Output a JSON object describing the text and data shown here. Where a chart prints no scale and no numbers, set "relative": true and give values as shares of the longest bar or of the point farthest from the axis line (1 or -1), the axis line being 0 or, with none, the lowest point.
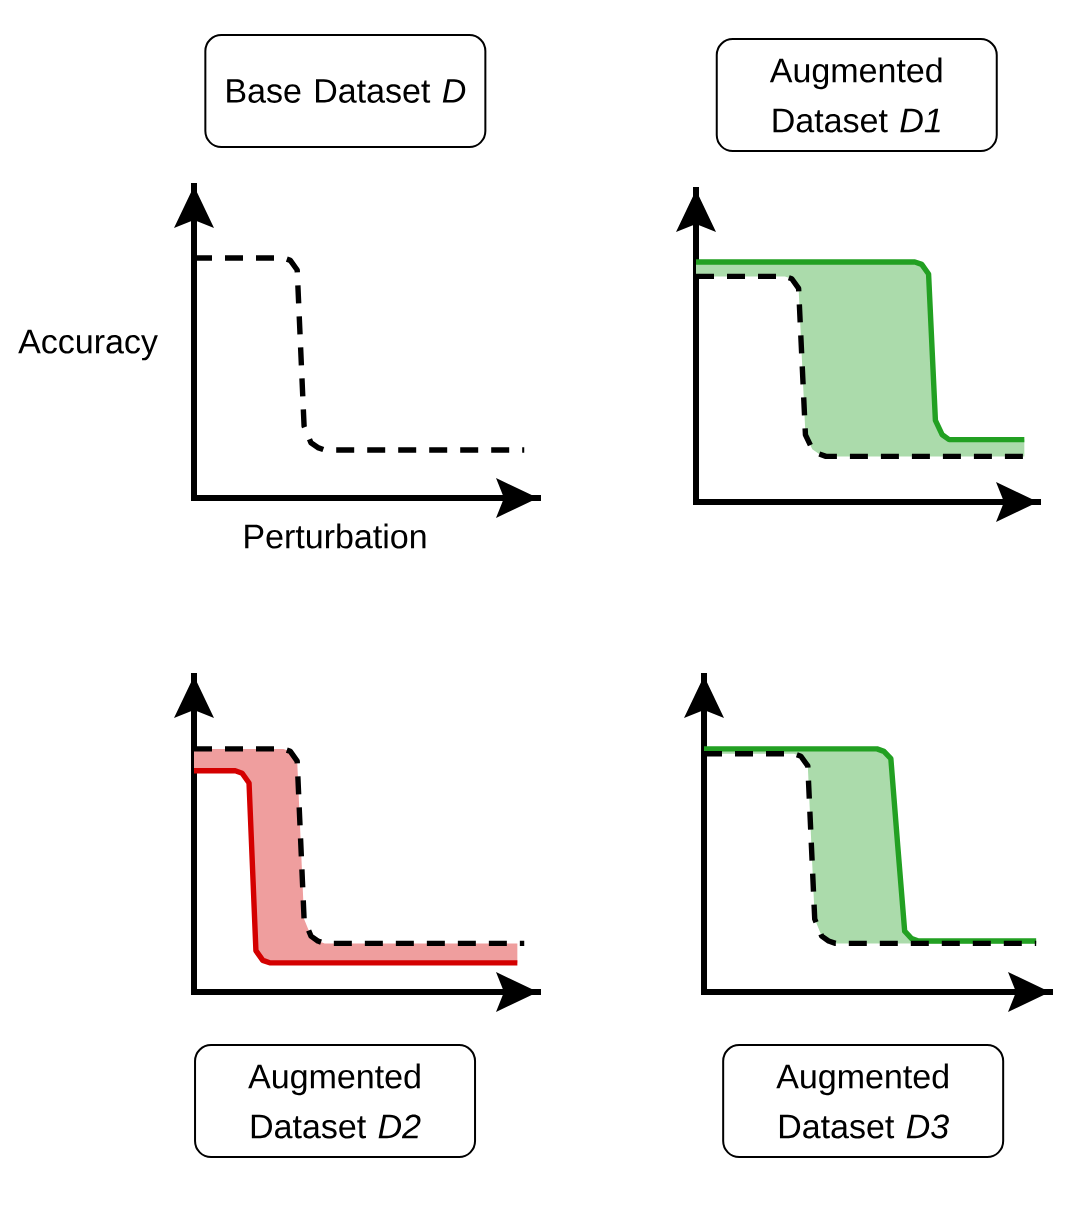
{
  "chart_data": [
    {
      "type": "line",
      "relative": true,
      "title": "Base Dataset *D*",
      "xlabel": "Perturbation",
      "ylabel": "Accuracy",
      "categories": [
        null,
        null,
        null,
        null,
        null,
        null,
        null,
        null,
        null,
        null,
        null,
        null,
        null,
        null,
        null,
        null,
        null,
        null,
        null,
        null,
        null,
        null,
        null,
        null,
        null,
        null,
        null,
        null,
        null,
        null,
        null,
        null,
        null,
        null,
        null,
        null,
        null,
        null,
        null,
        null,
        null,
        null,
        null,
        null,
        null,
        null,
        null,
        null,
        null,
        null,
        null
      ],
      "series": [
        {
          "color": "#000000",
          "line_style": "dashed",
          "values": [
            1,
            1,
            1,
            1,
            1,
            1,
            1,
            1,
            1,
            1,
            1,
            1,
            1,
            1,
            0.99,
            0.95,
            0.3,
            0.23,
            0.21,
            0.2,
            0.2,
            0.2,
            0.2,
            0.2,
            0.2,
            0.2,
            0.2,
            0.2,
            0.2,
            0.2,
            0.2,
            0.2,
            0.2,
            0.2,
            0.2,
            0.2,
            0.2,
            0.2,
            0.2,
            0.2,
            0.2,
            0.2,
            0.2,
            0.2,
            0.2,
            0.2,
            0.2,
            0.2,
            0.2,
            null,
            null
          ]
        }
      ]
    },
    {
      "type": "line",
      "relative": true,
      "title": "Augmented Dataset *D1*",
      "categories": [
        null,
        null,
        null,
        null,
        null,
        null,
        null,
        null,
        null,
        null,
        null,
        null,
        null,
        null,
        null,
        null,
        null,
        null,
        null,
        null,
        null,
        null,
        null,
        null,
        null,
        null,
        null,
        null,
        null,
        null,
        null,
        null,
        null,
        null,
        null,
        null,
        null,
        null,
        null,
        null,
        null,
        null,
        null,
        null,
        null,
        null,
        null,
        null,
        null,
        null,
        null
      ],
      "series": [
        {
          "color": "#22a022",
          "values": [
            1,
            1,
            1,
            1,
            1,
            1,
            1,
            1,
            1,
            1,
            1,
            1,
            1,
            1,
            1,
            1,
            1,
            1,
            1,
            1,
            1,
            1,
            1,
            1,
            1,
            1,
            1,
            1,
            1,
            1,
            1,
            1,
            1,
            0.99,
            0.95,
            0.34,
            0.28,
            0.26,
            0.26,
            0.26,
            0.26,
            0.26,
            0.26,
            0.26,
            0.26,
            0.26,
            0.26,
            0.26,
            0.26,
            null,
            null
          ],
          "lower": [
            0.94,
            0.94,
            0.94,
            0.94,
            0.94,
            0.94,
            0.94,
            0.94,
            0.94,
            0.94,
            0.94,
            0.94,
            0.94,
            0.94,
            0.93,
            0.89,
            0.28,
            0.22,
            0.2,
            0.19,
            0.19,
            0.19,
            0.19,
            0.19,
            0.19,
            0.19,
            0.19,
            0.19,
            0.19,
            0.19,
            0.19,
            0.19,
            0.19,
            0.19,
            0.19,
            0.19,
            0.19,
            0.19,
            0.19,
            0.19,
            0.19,
            0.19,
            0.19,
            0.19,
            0.19,
            0.19,
            0.19,
            0.19,
            0.19,
            null,
            null
          ],
          "upper": [
            1,
            1,
            1,
            1,
            1,
            1,
            1,
            1,
            1,
            1,
            1,
            1,
            1,
            1,
            1,
            1,
            1,
            1,
            1,
            1,
            1,
            1,
            1,
            1,
            1,
            1,
            1,
            1,
            1,
            1,
            1,
            1,
            1,
            0.99,
            0.95,
            0.34,
            0.28,
            0.26,
            0.26,
            0.26,
            0.26,
            0.26,
            0.26,
            0.26,
            0.26,
            0.26,
            0.26,
            0.26,
            0.26,
            null,
            null
          ]
        },
        {
          "color": "#000000",
          "line_style": "dashed",
          "values": [
            0.94,
            0.94,
            0.94,
            0.94,
            0.94,
            0.94,
            0.94,
            0.94,
            0.94,
            0.94,
            0.94,
            0.94,
            0.94,
            0.94,
            0.93,
            0.89,
            0.28,
            0.22,
            0.2,
            0.19,
            0.19,
            0.19,
            0.19,
            0.19,
            0.19,
            0.19,
            0.19,
            0.19,
            0.19,
            0.19,
            0.19,
            0.19,
            0.19,
            0.19,
            0.19,
            0.19,
            0.19,
            0.19,
            0.19,
            0.19,
            0.19,
            0.19,
            0.19,
            0.19,
            0.19,
            0.19,
            0.19,
            0.19,
            0.19,
            null,
            null
          ]
        }
      ]
    },
    {
      "type": "line",
      "relative": true,
      "title": "Augmented Dataset *D2*",
      "categories": [
        null,
        null,
        null,
        null,
        null,
        null,
        null,
        null,
        null,
        null,
        null,
        null,
        null,
        null,
        null,
        null,
        null,
        null,
        null,
        null,
        null,
        null,
        null,
        null,
        null,
        null,
        null,
        null,
        null,
        null,
        null,
        null,
        null,
        null,
        null,
        null,
        null,
        null,
        null,
        null,
        null,
        null,
        null,
        null,
        null,
        null,
        null,
        null,
        null,
        null,
        null
      ],
      "series": [
        {
          "color": "#d40000",
          "values": [
            0.91,
            0.91,
            0.91,
            0.91,
            0.91,
            0.91,
            0.91,
            0.9,
            0.86,
            0.17,
            0.13,
            0.12,
            0.12,
            0.12,
            0.12,
            0.12,
            0.12,
            0.12,
            0.12,
            0.12,
            0.12,
            0.12,
            0.12,
            0.12,
            0.12,
            0.12,
            0.12,
            0.12,
            0.12,
            0.12,
            0.12,
            0.12,
            0.12,
            0.12,
            0.12,
            0.12,
            0.12,
            0.12,
            0.12,
            0.12,
            0.12,
            0.12,
            0.12,
            0.12,
            0.12,
            0.12,
            0.12,
            0.12,
            null,
            null,
            null
          ],
          "lower": [
            0.91,
            0.91,
            0.91,
            0.91,
            0.91,
            0.91,
            0.91,
            0.9,
            0.86,
            0.17,
            0.13,
            0.12,
            0.12,
            0.12,
            0.12,
            0.12,
            0.12,
            0.12,
            0.12,
            0.12,
            0.12,
            0.12,
            0.12,
            0.12,
            0.12,
            0.12,
            0.12,
            0.12,
            0.12,
            0.12,
            0.12,
            0.12,
            0.12,
            0.12,
            0.12,
            0.12,
            0.12,
            0.12,
            0.12,
            0.12,
            0.12,
            0.12,
            0.12,
            0.12,
            0.12,
            0.12,
            0.12,
            0.12,
            null,
            null,
            null
          ],
          "upper": [
            1,
            1,
            1,
            1,
            1,
            1,
            1,
            1,
            1,
            1,
            1,
            1,
            1,
            1,
            0.99,
            0.95,
            0.3,
            0.23,
            0.21,
            0.2,
            0.2,
            0.2,
            0.2,
            0.2,
            0.2,
            0.2,
            0.2,
            0.2,
            0.2,
            0.2,
            0.2,
            0.2,
            0.2,
            0.2,
            0.2,
            0.2,
            0.2,
            0.2,
            0.2,
            0.2,
            0.2,
            0.2,
            0.2,
            0.2,
            0.2,
            0.2,
            0.2,
            0.2,
            null,
            null,
            null
          ]
        },
        {
          "color": "#000000",
          "line_style": "dashed",
          "values": [
            1,
            1,
            1,
            1,
            1,
            1,
            1,
            1,
            1,
            1,
            1,
            1,
            1,
            1,
            0.99,
            0.95,
            0.3,
            0.23,
            0.21,
            0.2,
            0.2,
            0.2,
            0.2,
            0.2,
            0.2,
            0.2,
            0.2,
            0.2,
            0.2,
            0.2,
            0.2,
            0.2,
            0.2,
            0.2,
            0.2,
            0.2,
            0.2,
            0.2,
            0.2,
            0.2,
            0.2,
            0.2,
            0.2,
            0.2,
            0.2,
            0.2,
            0.2,
            0.2,
            0.2,
            null,
            null
          ]
        }
      ]
    },
    {
      "type": "line",
      "relative": true,
      "title": "Augmented Dataset *D3*",
      "categories": [
        null,
        null,
        null,
        null,
        null,
        null,
        null,
        null,
        null,
        null,
        null,
        null,
        null,
        null,
        null,
        null,
        null,
        null,
        null,
        null,
        null,
        null,
        null,
        null,
        null,
        null,
        null,
        null,
        null,
        null,
        null,
        null,
        null,
        null,
        null,
        null,
        null,
        null,
        null,
        null,
        null,
        null,
        null,
        null,
        null,
        null,
        null,
        null,
        null,
        null,
        null
      ],
      "series": [
        {
          "color": "#22a022",
          "values": [
            1,
            1,
            1,
            1,
            1,
            1,
            1,
            1,
            1,
            1,
            1,
            1,
            1,
            1,
            1,
            1,
            1,
            1,
            1,
            1,
            1,
            1,
            1,
            1,
            1,
            1,
            0.99,
            0.96,
            0.6,
            0.25,
            0.22,
            0.21,
            0.21,
            0.21,
            0.21,
            0.21,
            0.21,
            0.21,
            0.21,
            0.21,
            0.21,
            0.21,
            0.21,
            0.21,
            0.21,
            0.21,
            0.21,
            0.21,
            0.21,
            null,
            null
          ],
          "lower": [
            0.98,
            0.98,
            0.98,
            0.98,
            0.98,
            0.98,
            0.98,
            0.98,
            0.98,
            0.98,
            0.98,
            0.98,
            0.98,
            0.98,
            0.97,
            0.93,
            0.3,
            0.23,
            0.21,
            0.2,
            0.2,
            0.2,
            0.2,
            0.2,
            0.2,
            0.2,
            0.2,
            0.2,
            0.2,
            0.2,
            0.2,
            0.2,
            0.2,
            0.2,
            0.2,
            0.2,
            0.2,
            0.2,
            0.2,
            0.2,
            0.2,
            0.2,
            0.2,
            0.2,
            0.2,
            0.2,
            0.2,
            0.2,
            0.2,
            null,
            null
          ],
          "upper": [
            1,
            1,
            1,
            1,
            1,
            1,
            1,
            1,
            1,
            1,
            1,
            1,
            1,
            1,
            1,
            1,
            1,
            1,
            1,
            1,
            1,
            1,
            1,
            1,
            1,
            1,
            0.99,
            0.96,
            0.6,
            0.25,
            0.22,
            0.21,
            0.21,
            0.21,
            0.21,
            0.21,
            0.21,
            0.21,
            0.21,
            0.21,
            0.21,
            0.21,
            0.21,
            0.21,
            0.21,
            0.21,
            0.21,
            0.21,
            0.21,
            null,
            null
          ]
        },
        {
          "color": "#000000",
          "line_style": "dashed",
          "values": [
            0.98,
            0.98,
            0.98,
            0.98,
            0.98,
            0.98,
            0.98,
            0.98,
            0.98,
            0.98,
            0.98,
            0.98,
            0.98,
            0.98,
            0.97,
            0.93,
            0.3,
            0.23,
            0.21,
            0.2,
            0.2,
            0.2,
            0.2,
            0.2,
            0.2,
            0.2,
            0.2,
            0.2,
            0.2,
            0.2,
            0.2,
            0.2,
            0.2,
            0.2,
            0.2,
            0.2,
            0.2,
            0.2,
            0.2,
            0.2,
            0.2,
            0.2,
            0.2,
            0.2,
            0.2,
            0.2,
            0.2,
            0.2,
            0.2,
            null,
            null
          ]
        }
      ]
    }
  ]
}
